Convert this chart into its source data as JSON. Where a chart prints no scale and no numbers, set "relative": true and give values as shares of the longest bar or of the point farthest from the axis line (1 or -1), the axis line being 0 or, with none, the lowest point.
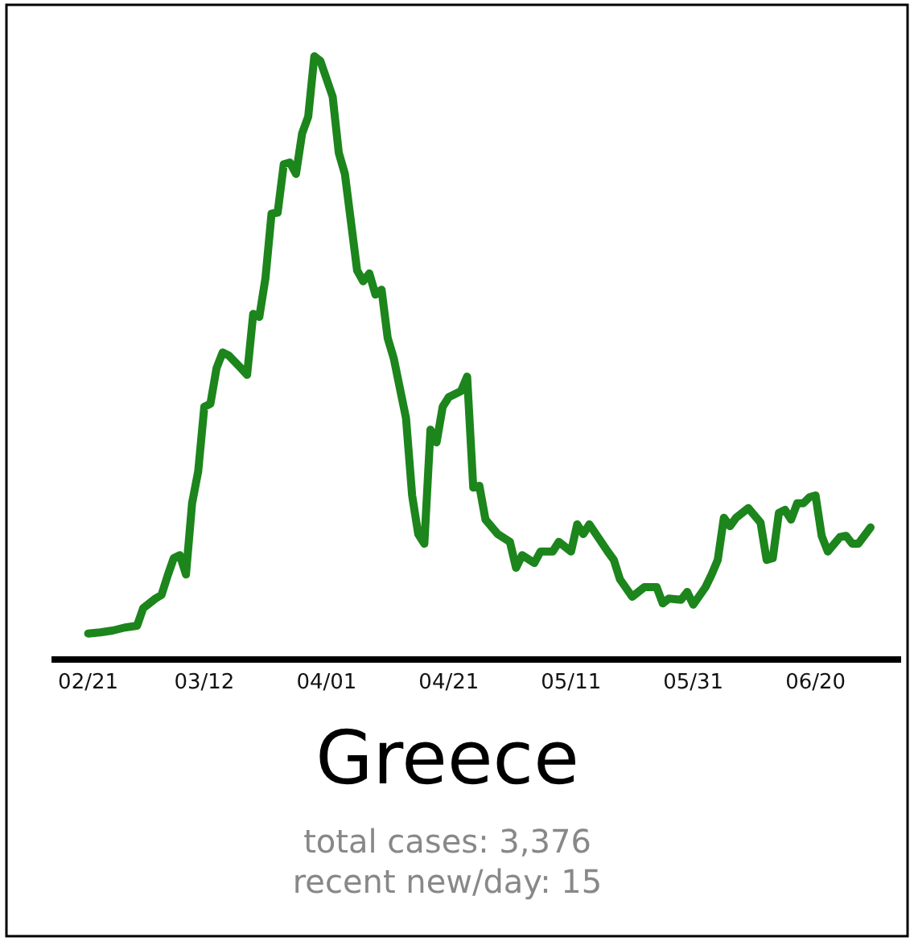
{
  "chart_data": {
    "type": "line",
    "title": "Greece",
    "annotations": [
      "total cases: 3,376",
      "recent new/day: 15"
    ],
    "relative": true,
    "xlim": [
      "--02-15",
      "--07-04"
    ],
    "xticks": [
      {
        "value": "--02-21",
        "label": "02/21"
      },
      {
        "value": "--03-12",
        "label": "03/12"
      },
      {
        "value": "--04-01",
        "label": "04/01"
      },
      {
        "value": "--04-21",
        "label": "04/21"
      },
      {
        "value": "--05-11",
        "label": "05/11"
      },
      {
        "value": "--05-31",
        "label": "05/31"
      },
      {
        "value": "--06-20",
        "label": "06/20"
      }
    ],
    "x": [
      "--02-21",
      "--02-23",
      "--02-25",
      "--02-27",
      "--03-01",
      "--03-02",
      "--03-04",
      "--03-05",
      "--03-06",
      "--03-07",
      "--03-08",
      "--03-09",
      "--03-10",
      "--03-11",
      "--03-12",
      "--03-13",
      "--03-14",
      "--03-15",
      "--03-16",
      "--03-18",
      "--03-19",
      "--03-20",
      "--03-21",
      "--03-22",
      "--03-23",
      "--03-24",
      "--03-25",
      "--03-26",
      "--03-27",
      "--03-28",
      "--03-29",
      "--03-30",
      "--03-31",
      "--04-02",
      "--04-03",
      "--04-04",
      "--04-06",
      "--04-07",
      "--04-08",
      "--04-09",
      "--04-10",
      "--04-11",
      "--04-12",
      "--04-14",
      "--04-15",
      "--04-16",
      "--04-17",
      "--04-18",
      "--04-19",
      "--04-20",
      "--04-21",
      "--04-23",
      "--04-24",
      "--04-25",
      "--04-26",
      "--04-27",
      "--04-29",
      "--05-01",
      "--05-02",
      "--05-03",
      "--05-05",
      "--05-06",
      "--05-08",
      "--05-09",
      "--05-11",
      "--05-12",
      "--05-13",
      "--05-14",
      "--05-17",
      "--05-18",
      "--05-19",
      "--05-21",
      "--05-23",
      "--05-25",
      "--05-26",
      "--05-27",
      "--05-29",
      "--05-30",
      "--05-31",
      "--06-02",
      "--06-03",
      "--06-04",
      "--06-05",
      "--06-06",
      "--06-07",
      "--06-09",
      "--06-11",
      "--06-12",
      "--06-13",
      "--06-14",
      "--06-15",
      "--06-16",
      "--06-17",
      "--06-18",
      "--06-19",
      "--06-20",
      "--06-21",
      "--06-22",
      "--06-24",
      "--06-25",
      "--06-26",
      "--06-27",
      "--06-29"
    ],
    "series": [
      {
        "color": "#1c851c",
        "values": [
          0.043,
          0.045,
          0.048,
          0.053,
          0.056,
          0.085,
          0.101,
          0.107,
          0.139,
          0.168,
          0.173,
          0.141,
          0.259,
          0.312,
          0.419,
          0.424,
          0.483,
          0.509,
          0.504,
          0.483,
          0.472,
          0.573,
          0.568,
          0.632,
          0.739,
          0.741,
          0.821,
          0.824,
          0.805,
          0.872,
          0.9,
          1,
          0.992,
          0.933,
          0.84,
          0.805,
          0.645,
          0.627,
          0.64,
          0.605,
          0.613,
          0.533,
          0.499,
          0.4,
          0.272,
          0.208,
          0.192,
          0.381,
          0.36,
          0.419,
          0.435,
          0.445,
          0.469,
          0.285,
          0.288,
          0.232,
          0.208,
          0.195,
          0.152,
          0.173,
          0.16,
          0.179,
          0.179,
          0.195,
          0.179,
          0.224,
          0.208,
          0.224,
          0.179,
          0.165,
          0.133,
          0.104,
          0.12,
          0.12,
          0.093,
          0.101,
          0.099,
          0.112,
          0.091,
          0.12,
          0.141,
          0.165,
          0.235,
          0.221,
          0.235,
          0.251,
          0.227,
          0.165,
          0.168,
          0.243,
          0.248,
          0.232,
          0.259,
          0.259,
          0.269,
          0.272,
          0.205,
          0.179,
          0.203,
          0.205,
          0.192,
          0.192,
          0.219
        ]
      }
    ]
  }
}
